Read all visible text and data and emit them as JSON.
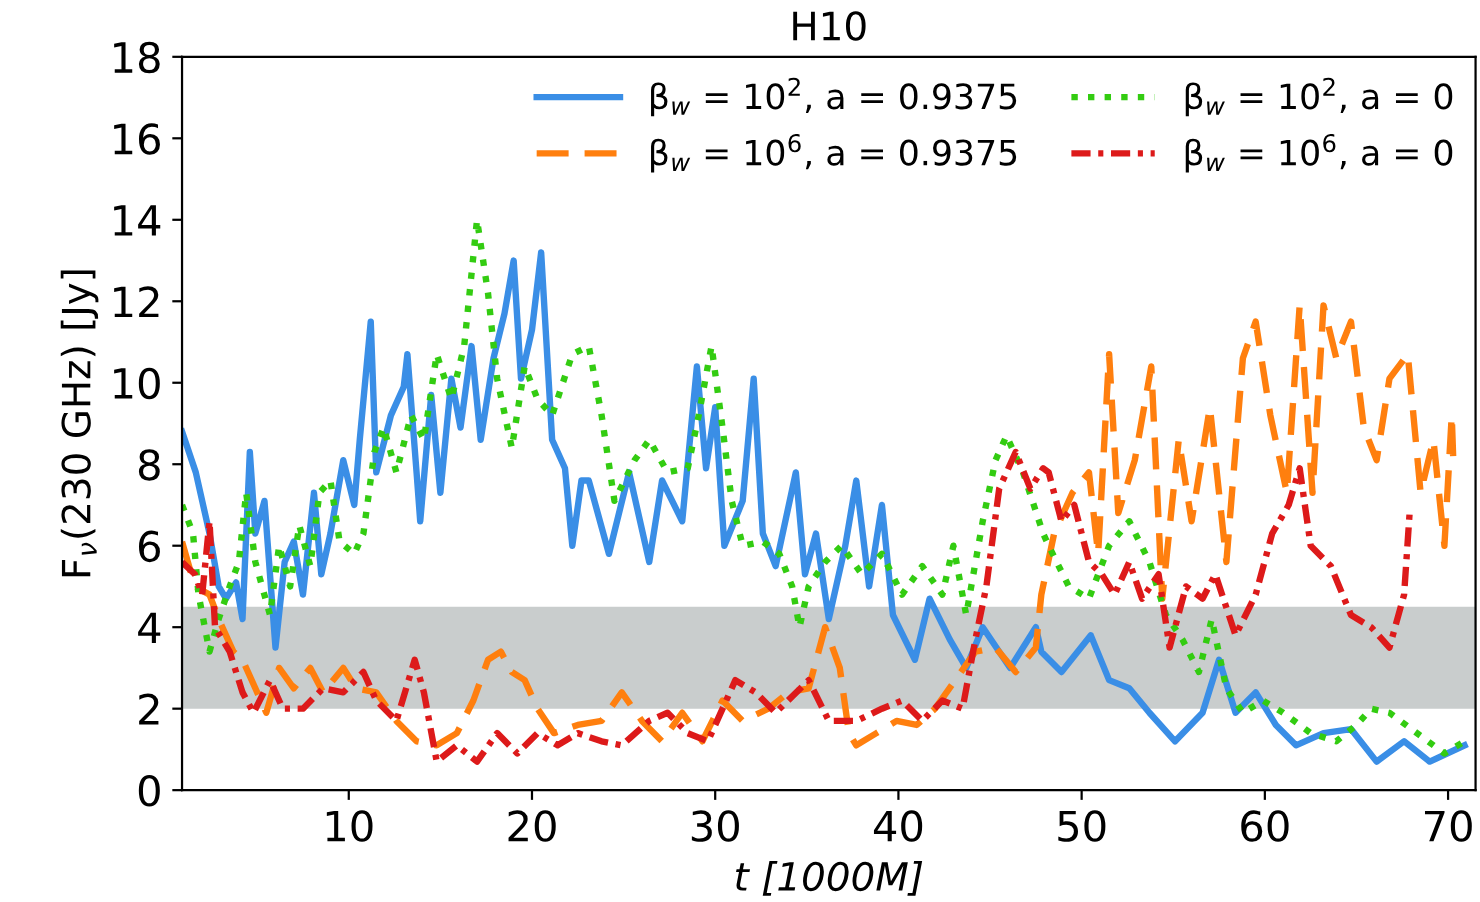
{
  "chart_data": {
    "type": "line",
    "title": "H10",
    "xlabel": "t [1000M]",
    "ylabel": "F$_{ν}$(230 GHz) [Jy]",
    "xlim": [
      0.9,
      71.5
    ],
    "xticks": [
      10,
      20,
      30,
      40,
      50,
      60,
      70
    ],
    "ylim": [
      0,
      18
    ],
    "yticks": [
      0,
      2,
      4,
      6,
      8,
      10,
      12,
      14,
      16,
      18
    ],
    "grid": false,
    "legend": "top right",
    "marker": "none",
    "bands": [
      {
        "axis": "y",
        "from": 2,
        "to": 4.5,
        "color": "#c9cdcd"
      }
    ],
    "series": [
      {
        "name": "β$_{w}$ = 10$^{2}$, a = 0.9375",
        "color": "#3a8ee6",
        "line_style": "solid",
        "x": [
          0.9,
          1.65,
          2.4,
          2.9,
          3.3,
          3.85,
          4.2,
          4.6,
          4.9,
          5.4,
          6.0,
          6.5,
          7.0,
          7.5,
          8.1,
          8.5,
          9.0,
          9.7,
          10.3,
          10.6,
          11.2,
          11.5,
          12.3,
          13.0,
          13.2,
          13.7,
          13.9,
          14.5,
          15.0,
          15.6,
          16.1,
          16.7,
          17.2,
          17.9,
          18.5,
          19.0,
          19.4,
          20.0,
          20.5,
          21.1,
          21.8,
          22.2,
          22.7,
          23.1,
          24.2,
          25.3,
          26.4,
          27.1,
          28.2,
          29.0,
          29.5,
          30.0,
          30.5,
          31.5,
          32.1,
          32.6,
          33.3,
          34.4,
          34.9,
          35.5,
          36.2,
          37.1,
          37.7,
          38.4,
          39.1,
          39.7,
          40.9,
          41.7,
          42.8,
          43.7,
          44.6,
          46.1,
          47.5,
          47.8,
          48.9,
          50.5,
          51.5,
          52.6,
          53.7,
          55.1,
          56.6,
          57.5,
          58.4,
          59.5,
          60.6,
          61.7,
          63.2,
          64.7,
          66.1,
          67.6,
          69.0,
          70.9
        ],
        "values": [
          8.8,
          7.8,
          6.3,
          5.0,
          4.7,
          5.1,
          4.2,
          8.3,
          6.3,
          7.1,
          3.5,
          5.6,
          6.1,
          4.8,
          7.3,
          5.3,
          6.3,
          8.1,
          7.0,
          8.6,
          11.5,
          7.8,
          9.2,
          9.9,
          10.7,
          7.8,
          6.6,
          9.7,
          7.3,
          10.1,
          8.9,
          10.9,
          8.6,
          10.6,
          11.7,
          13.0,
          10.1,
          11.3,
          13.2,
          8.6,
          7.9,
          6.0,
          7.6,
          7.6,
          5.8,
          7.8,
          5.6,
          7.6,
          6.6,
          10.4,
          7.9,
          9.4,
          6.0,
          7.1,
          10.1,
          6.3,
          5.5,
          7.8,
          5.3,
          6.3,
          4.2,
          6.0,
          7.6,
          5.0,
          7.0,
          4.3,
          3.2,
          4.7,
          3.7,
          3.0,
          4.0,
          3.0,
          4.0,
          3.4,
          2.9,
          3.8,
          2.7,
          2.5,
          1.9,
          1.2,
          1.9,
          3.2,
          1.9,
          2.4,
          1.6,
          1.1,
          1.4,
          1.5,
          0.7,
          1.2,
          0.7,
          1.1
        ]
      },
      {
        "name": "β$_{w}$ = 10$^{6}$, a = 0.9375",
        "color": "#ff7f0e",
        "line_style": "dashed",
        "x": [
          0.9,
          1.6,
          2.4,
          2.9,
          3.7,
          4.2,
          4.9,
          5.5,
          6.2,
          7.0,
          7.9,
          8.6,
          9.7,
          10.4,
          11.5,
          12.6,
          13.7,
          14.8,
          15.9,
          16.8,
          17.6,
          18.3,
          18.9,
          19.6,
          20.3,
          21.2,
          22.5,
          23.8,
          24.9,
          26.0,
          27.1,
          28.2,
          29.3,
          30.4,
          31.5,
          32.9,
          34.0,
          35.1,
          36.0,
          36.8,
          37.3,
          37.7,
          38.8,
          39.9,
          41.0,
          42.0,
          43.1,
          44.2,
          45.3,
          46.4,
          47.5,
          47.8,
          48.5,
          49.5,
          50.4,
          50.9,
          51.5,
          52.0,
          52.9,
          53.8,
          54.4,
          55.3,
          56.0,
          57.0,
          57.9,
          58.8,
          59.5,
          60.3,
          61.2,
          61.9,
          62.6,
          63.2,
          63.9,
          64.7,
          65.4,
          66.1,
          66.8,
          67.8,
          68.5,
          69.2,
          69.8,
          70.2,
          70.3
        ],
        "values": [
          6.1,
          5.0,
          4.8,
          4.2,
          3.4,
          3.2,
          2.5,
          1.9,
          3.0,
          2.5,
          3.0,
          2.4,
          3.0,
          2.5,
          2.4,
          1.7,
          1.2,
          1.1,
          1.4,
          2.2,
          3.2,
          3.4,
          2.9,
          2.7,
          2.0,
          1.4,
          1.6,
          1.7,
          2.4,
          1.7,
          1.2,
          1.9,
          1.2,
          2.2,
          1.7,
          2.0,
          2.4,
          2.5,
          4.0,
          3.0,
          1.4,
          1.1,
          1.4,
          1.7,
          1.6,
          2.0,
          2.7,
          3.4,
          3.5,
          2.9,
          3.5,
          4.8,
          6.3,
          7.3,
          7.8,
          5.8,
          10.7,
          6.8,
          8.1,
          10.4,
          4.7,
          8.6,
          6.6,
          9.4,
          5.6,
          10.6,
          11.5,
          9.2,
          7.3,
          11.9,
          7.3,
          11.9,
          10.6,
          11.5,
          8.9,
          8.1,
          10.1,
          10.7,
          7.3,
          8.6,
          6.0,
          9.2,
          7.9
        ]
      },
      {
        "name": "β$_{w}$ = 10$^{2}$, a = 0",
        "color": "#33cc11",
        "line_style": "dotted",
        "x": [
          0.9,
          1.5,
          1.8,
          2.4,
          2.9,
          3.5,
          4.0,
          4.4,
          4.9,
          5.7,
          6.2,
          6.8,
          7.3,
          7.9,
          8.4,
          9.0,
          9.5,
          10.3,
          10.8,
          11.4,
          11.9,
          12.6,
          13.4,
          14.1,
          14.8,
          15.6,
          16.3,
          17.0,
          17.6,
          18.1,
          18.9,
          19.6,
          20.3,
          21.1,
          22.2,
          23.1,
          23.8,
          24.5,
          25.6,
          26.4,
          27.4,
          28.5,
          29.1,
          29.8,
          30.4,
          30.9,
          31.5,
          32.6,
          33.5,
          34.2,
          34.6,
          35.1,
          36.0,
          36.9,
          38.0,
          39.1,
          40.2,
          41.3,
          42.4,
          43.0,
          43.7,
          44.6,
          45.3,
          45.9,
          46.8,
          47.9,
          48.2,
          49.3,
          50.4,
          51.5,
          52.6,
          53.7,
          54.6,
          55.5,
          56.4,
          57.1,
          57.9,
          58.8,
          59.9,
          61.0,
          62.5,
          63.9,
          65.0,
          65.8,
          66.8,
          68.3,
          69.8,
          70.9
        ],
        "values": [
          7.0,
          6.3,
          4.8,
          3.4,
          4.2,
          5.0,
          5.6,
          7.3,
          5.6,
          4.3,
          6.0,
          5.0,
          6.5,
          5.5,
          7.3,
          7.6,
          6.1,
          5.8,
          6.3,
          8.3,
          8.9,
          7.8,
          9.2,
          8.6,
          10.7,
          9.6,
          10.9,
          14.0,
          12.2,
          10.1,
          8.4,
          10.4,
          9.6,
          9.2,
          10.7,
          10.9,
          9.2,
          7.1,
          8.1,
          8.6,
          7.8,
          7.9,
          9.2,
          10.9,
          8.9,
          7.1,
          6.0,
          6.1,
          5.8,
          5.0,
          4.0,
          5.0,
          5.6,
          6.0,
          5.3,
          5.8,
          4.8,
          5.5,
          4.8,
          6.0,
          4.3,
          6.6,
          8.1,
          8.7,
          7.8,
          6.3,
          6.0,
          5.0,
          4.7,
          6.0,
          6.6,
          5.6,
          4.3,
          3.7,
          2.9,
          4.2,
          2.5,
          1.9,
          2.2,
          1.9,
          1.4,
          1.2,
          1.6,
          2.0,
          1.9,
          1.4,
          0.9,
          1.2
        ]
      },
      {
        "name": "β$_{w}$ = 10$^{6}$, a = 0",
        "color": "#dd1a1a",
        "line_style": "dashdot",
        "x": [
          0.9,
          1.6,
          2.0,
          2.4,
          2.7,
          3.5,
          4.2,
          4.8,
          5.7,
          6.4,
          7.5,
          8.6,
          9.7,
          10.8,
          11.5,
          12.6,
          13.6,
          14.1,
          14.8,
          15.9,
          17.0,
          18.1,
          19.2,
          20.3,
          21.4,
          22.5,
          23.8,
          24.9,
          26.4,
          27.4,
          28.5,
          29.6,
          31.1,
          32.2,
          33.3,
          35.1,
          36.2,
          37.7,
          39.1,
          40.2,
          41.3,
          42.4,
          43.5,
          44.2,
          44.8,
          45.5,
          46.4,
          47.2,
          47.9,
          48.2,
          48.9,
          49.6,
          50.4,
          51.1,
          51.8,
          52.6,
          53.3,
          54.2,
          54.8,
          55.7,
          56.6,
          57.3,
          58.4,
          59.5,
          60.4,
          61.3,
          61.9,
          62.5,
          63.6,
          64.7,
          65.8,
          66.8,
          67.6,
          67.9
        ],
        "values": [
          5.6,
          5.3,
          4.8,
          6.6,
          4.0,
          3.4,
          2.4,
          1.9,
          2.7,
          2.0,
          2.0,
          2.5,
          2.4,
          2.9,
          2.2,
          1.7,
          3.2,
          2.4,
          0.7,
          1.1,
          0.7,
          1.4,
          0.9,
          1.4,
          1.1,
          1.4,
          1.2,
          1.1,
          1.7,
          1.9,
          1.4,
          1.2,
          2.7,
          2.4,
          1.9,
          2.7,
          1.7,
          1.7,
          2.0,
          2.2,
          1.7,
          2.2,
          2.0,
          3.7,
          5.0,
          7.4,
          8.3,
          7.4,
          7.9,
          7.8,
          6.6,
          7.0,
          5.6,
          5.3,
          4.8,
          5.6,
          4.7,
          5.3,
          3.5,
          5.0,
          4.7,
          5.3,
          3.8,
          4.8,
          6.3,
          7.0,
          7.9,
          6.0,
          5.5,
          4.3,
          4.0,
          3.5,
          4.8,
          6.8
        ]
      }
    ]
  }
}
